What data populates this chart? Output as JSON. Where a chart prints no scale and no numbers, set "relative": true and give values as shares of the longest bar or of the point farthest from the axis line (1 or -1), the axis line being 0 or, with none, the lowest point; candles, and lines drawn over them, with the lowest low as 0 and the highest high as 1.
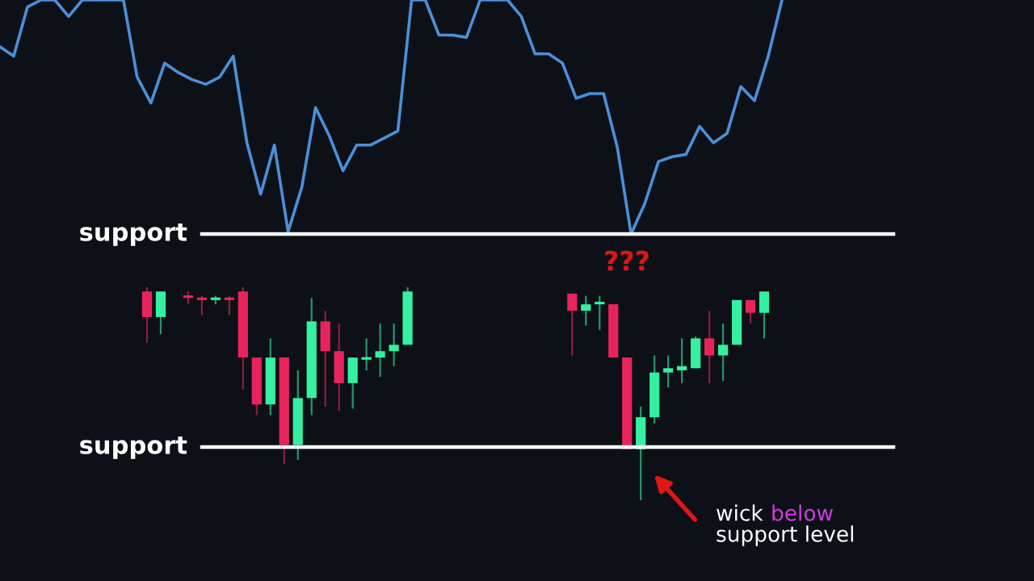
{
  "chart_data": [
    {
      "type": "line",
      "relative": true,
      "categories": [
        null,
        null,
        null,
        null,
        null,
        null,
        null,
        null,
        null,
        null,
        null,
        null,
        null,
        null,
        null,
        null,
        null,
        null,
        null,
        null,
        null,
        null,
        null,
        null,
        null,
        null,
        null,
        null,
        null,
        null,
        null,
        null,
        null,
        null,
        null,
        null,
        null,
        null,
        null,
        null,
        null,
        null,
        null,
        null,
        null,
        null,
        null,
        null,
        null,
        null,
        null,
        null,
        null,
        null,
        null,
        null,
        null,
        null
      ],
      "series": [
        {
          "color": "#4a90d9",
          "values": [
            0.8,
            0.76,
            0.97,
            1.0,
            1.0,
            0.93,
            1.0,
            1.0,
            1.0,
            1.0,
            0.67,
            0.56,
            0.73,
            0.69,
            0.66,
            0.64,
            0.67,
            0.76,
            0.39,
            0.17,
            0.38,
            0.01,
            0.2,
            0.54,
            0.42,
            0.27,
            0.38,
            0.38,
            0.41,
            0.44,
            1.0,
            1.0,
            0.85,
            0.85,
            0.84,
            1.0,
            1.0,
            1.0,
            0.93,
            0.77,
            0.77,
            0.73,
            0.58,
            0.6,
            0.6,
            0.37,
            0.0,
            0.13,
            0.31,
            0.33,
            0.34,
            0.46,
            0.39,
            0.43,
            0.63,
            0.57,
            0.76,
            1.0
          ]
        }
      ],
      "ref_lines": [
        {
          "axis": "y",
          "value": 0,
          "label": "support",
          "color": "#ffffff"
        }
      ]
    },
    {
      "type": "candlestick",
      "relative": true,
      "categories": [
        null,
        null,
        null,
        null,
        null,
        null,
        null,
        null,
        null,
        null,
        null,
        null,
        null,
        null,
        null,
        null,
        null,
        null,
        null,
        null,
        null,
        null,
        null,
        null,
        null,
        null,
        null,
        null,
        null,
        null,
        null,
        null,
        null,
        null,
        null,
        null,
        null,
        null,
        null,
        null,
        null,
        null,
        null,
        null,
        null,
        null
      ],
      "ohlc": [
        [
          0.98,
          1.0,
          0.74,
          0.86
        ],
        [
          0.86,
          0.98,
          0.78,
          0.98
        ],
        null,
        [
          0.96,
          0.98,
          0.92,
          0.95
        ],
        [
          0.95,
          0.96,
          0.87,
          0.94
        ],
        [
          0.94,
          0.96,
          0.92,
          0.95
        ],
        [
          0.95,
          0.96,
          0.87,
          0.94
        ],
        [
          0.98,
          1.0,
          0.52,
          0.67
        ],
        [
          0.67,
          0.67,
          0.4,
          0.45
        ],
        [
          0.45,
          0.76,
          0.4,
          0.67
        ],
        [
          0.67,
          0.67,
          0.17,
          0.26
        ],
        [
          0.26,
          0.61,
          0.19,
          0.48
        ],
        [
          0.48,
          0.95,
          0.4,
          0.84
        ],
        [
          0.84,
          0.89,
          0.44,
          0.7
        ],
        [
          0.7,
          0.83,
          0.42,
          0.55
        ],
        [
          0.55,
          0.67,
          0.43,
          0.67
        ],
        [
          0.66,
          0.76,
          0.61,
          0.67
        ],
        [
          0.67,
          0.83,
          0.58,
          0.7
        ],
        [
          0.7,
          0.83,
          0.63,
          0.73
        ],
        [
          0.73,
          1.0,
          0.73,
          0.98
        ],
        null,
        null,
        null,
        null,
        null,
        null,
        null,
        null,
        null,
        null,
        null,
        [
          0.97,
          0.97,
          0.68,
          0.89
        ],
        [
          0.89,
          0.96,
          0.82,
          0.92
        ],
        [
          0.92,
          0.96,
          0.8,
          0.93
        ],
        [
          0.92,
          0.92,
          0.67,
          0.67
        ],
        [
          0.67,
          0.67,
          0.24,
          0.24
        ],
        [
          0.24,
          0.44,
          0.0,
          0.39
        ],
        [
          0.39,
          0.68,
          0.36,
          0.6
        ],
        [
          0.6,
          0.68,
          0.53,
          0.62
        ],
        [
          0.61,
          0.76,
          0.55,
          0.63
        ],
        [
          0.62,
          0.77,
          0.62,
          0.76
        ],
        [
          0.76,
          0.89,
          0.55,
          0.68
        ],
        [
          0.68,
          0.83,
          0.56,
          0.73
        ],
        [
          0.73,
          0.94,
          0.73,
          0.94
        ],
        [
          0.94,
          0.94,
          0.83,
          0.88
        ],
        [
          0.88,
          0.98,
          0.76,
          0.98
        ]
      ],
      "colors": [
        "#e8245c",
        "#35f0a0",
        null,
        "#e8245c",
        "#e8245c",
        "#35f0a0",
        "#e8245c",
        "#e8245c",
        "#e8245c",
        "#35f0a0",
        "#e8245c",
        "#35f0a0",
        "#35f0a0",
        "#e8245c",
        "#e8245c",
        "#35f0a0",
        "#35f0a0",
        "#35f0a0",
        "#35f0a0",
        "#35f0a0",
        null,
        null,
        null,
        null,
        null,
        null,
        null,
        null,
        null,
        null,
        null,
        "#e8245c",
        "#35f0a0",
        "#35f0a0",
        "#e8245c",
        "#e8245c",
        "#35f0a0",
        "#35f0a0",
        "#35f0a0",
        "#35f0a0",
        "#35f0a0",
        "#e8245c",
        "#35f0a0",
        "#35f0a0",
        "#e8245c",
        "#35f0a0"
      ],
      "ref_lines": [
        {
          "axis": "y",
          "value": 0.25,
          "label": "support",
          "color": "#ffffff"
        }
      ],
      "annotations": [
        "???",
        "wick below support level"
      ]
    }
  ]
}
